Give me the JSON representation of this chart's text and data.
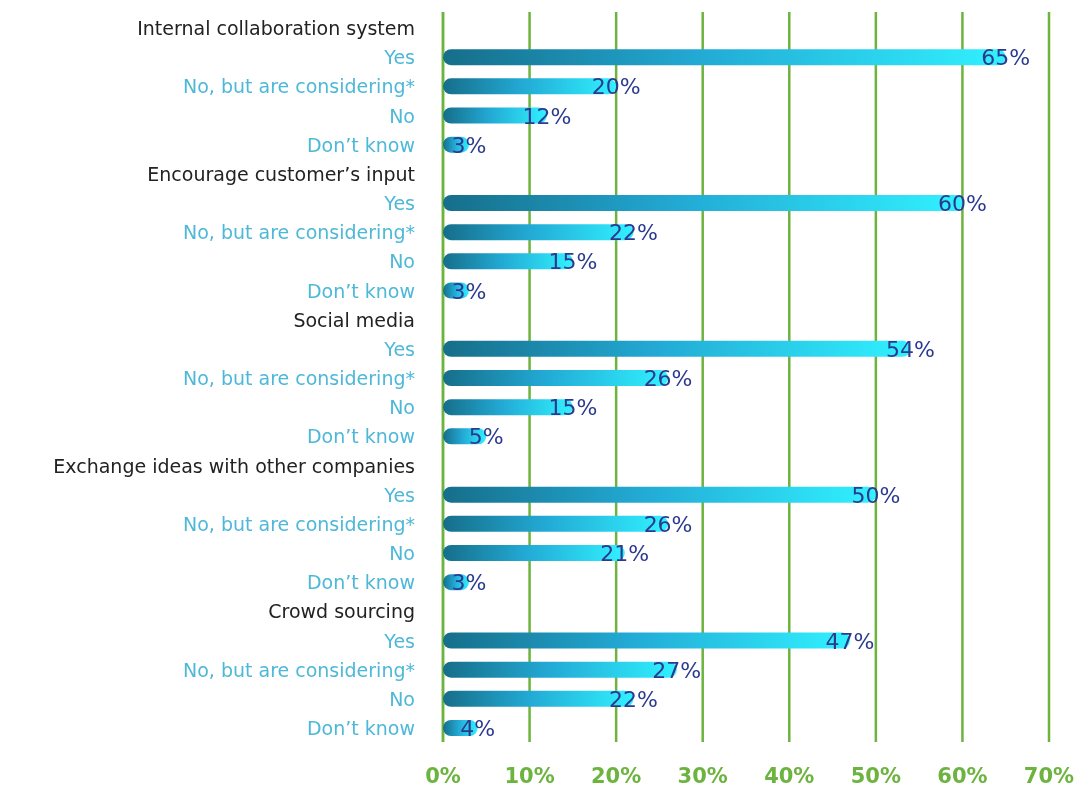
{
  "chart_data": {
    "type": "bar",
    "orientation": "horizontal",
    "categories": [
      "Internal collaboration system",
      "Yes",
      "No, but are considering*",
      "No",
      "Don’t know",
      "Encourage customer’s input",
      "Yes",
      "No, but are considering*",
      "No",
      "Don’t know",
      "Social media",
      "Yes",
      "No, but are considering*",
      "No",
      "Don’t know",
      "Exchange ideas with other companies",
      "Yes",
      "No, but are considering*",
      "No",
      "Don’t know",
      "Crowd sourcing",
      "Yes",
      "No, but are considering*",
      "No",
      "Don’t know"
    ],
    "values": [
      null,
      65,
      20,
      12,
      3,
      null,
      60,
      22,
      15,
      3,
      null,
      54,
      26,
      15,
      5,
      null,
      50,
      26,
      21,
      3,
      null,
      47,
      27,
      22,
      4
    ],
    "value_labels": [
      null,
      "65%",
      "20%",
      "12%",
      "3%",
      null,
      "60%",
      "22%",
      "15%",
      "3%",
      null,
      "54%",
      "26%",
      "15%",
      "5%",
      null,
      "50%",
      "26%",
      "21%",
      "3%",
      null,
      "47%",
      "27%",
      "22%",
      "4%"
    ],
    "color": "#22a9d4",
    "xlim": [
      0,
      70
    ],
    "xticks": [
      {
        "value": 0,
        "label": "0%"
      },
      {
        "value": 10,
        "label": "10%"
      },
      {
        "value": 20,
        "label": "20%"
      },
      {
        "value": 30,
        "label": "30%"
      },
      {
        "value": 40,
        "label": "40%"
      },
      {
        "value": 50,
        "label": "50%"
      },
      {
        "value": 60,
        "label": "60%"
      },
      {
        "value": 70,
        "label": "70%"
      }
    ],
    "grid": "x"
  }
}
